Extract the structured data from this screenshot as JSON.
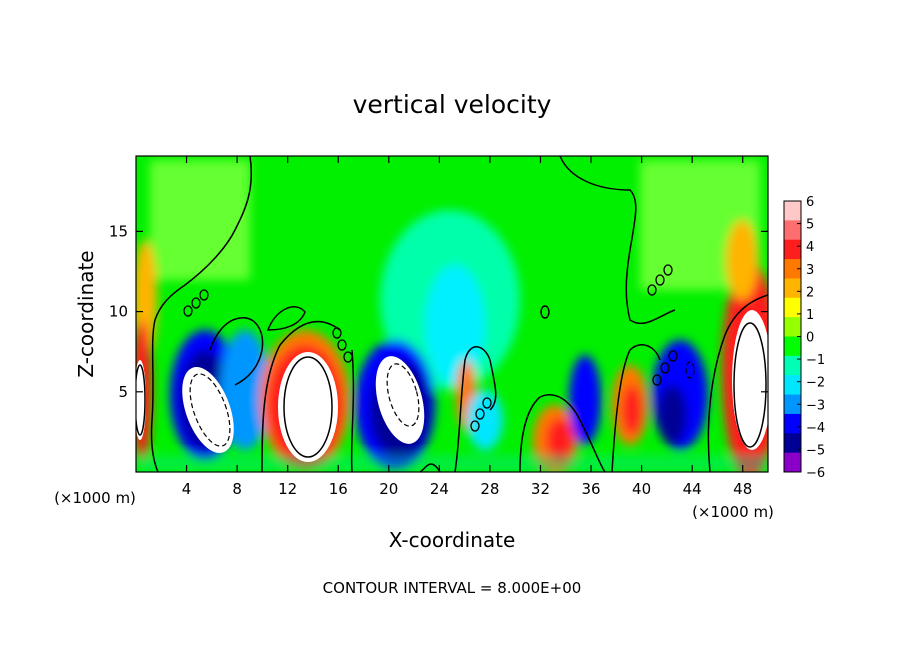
{
  "chart_data": {
    "type": "heatmap",
    "title": "vertical velocity",
    "xlabel": "X-coordinate",
    "ylabel": "Z-coordinate",
    "x_unit_left": "(×1000 m)",
    "x_unit_right": "(×1000 m)",
    "footer": "CONTOUR INTERVAL = 8.000E+00",
    "xlim": [
      0,
      50
    ],
    "ylim": [
      0,
      19.7
    ],
    "x_ticks": [
      4,
      8,
      12,
      16,
      20,
      24,
      28,
      32,
      36,
      40,
      44,
      48
    ],
    "y_ticks": [
      5,
      10,
      15
    ],
    "colorbar": {
      "ticks": [
        6,
        5,
        4,
        3,
        2,
        1,
        0,
        -1,
        -2,
        -3,
        -4,
        -5,
        -6
      ],
      "colors": [
        "#ffc8c8",
        "#ff6e6e",
        "#ff1e1e",
        "#ff7800",
        "#ffb400",
        "#ffff00",
        "#96ff00",
        "#00ff00",
        "#00ffb4",
        "#00e6ff",
        "#0096ff",
        "#0000ff",
        "#000096",
        "#8a00c8"
      ]
    },
    "contour_interval": 8.0,
    "features": [
      {
        "x": 0.8,
        "z": 4.5,
        "w": 8,
        "kind": "updraft"
      },
      {
        "x": 6.5,
        "z": 4.2,
        "w": -8,
        "kind": "downdraft"
      },
      {
        "x": 13.5,
        "z": 4.5,
        "w": 8,
        "kind": "updraft"
      },
      {
        "x": 20.5,
        "z": 5.5,
        "w": -8,
        "kind": "downdraft"
      },
      {
        "x": 25.5,
        "z": 4.5,
        "w": 3,
        "kind": "updraft"
      },
      {
        "x": 33.5,
        "z": 2.0,
        "w": 5,
        "kind": "updraft"
      },
      {
        "x": 35.5,
        "z": 5.0,
        "w": -6,
        "kind": "downdraft"
      },
      {
        "x": 39.5,
        "z": 4.0,
        "w": 5,
        "kind": "updraft"
      },
      {
        "x": 42.0,
        "z": 5.0,
        "w": -6,
        "kind": "downdraft"
      },
      {
        "x": 48.5,
        "z": 6.0,
        "w": 8,
        "kind": "updraft"
      }
    ]
  }
}
